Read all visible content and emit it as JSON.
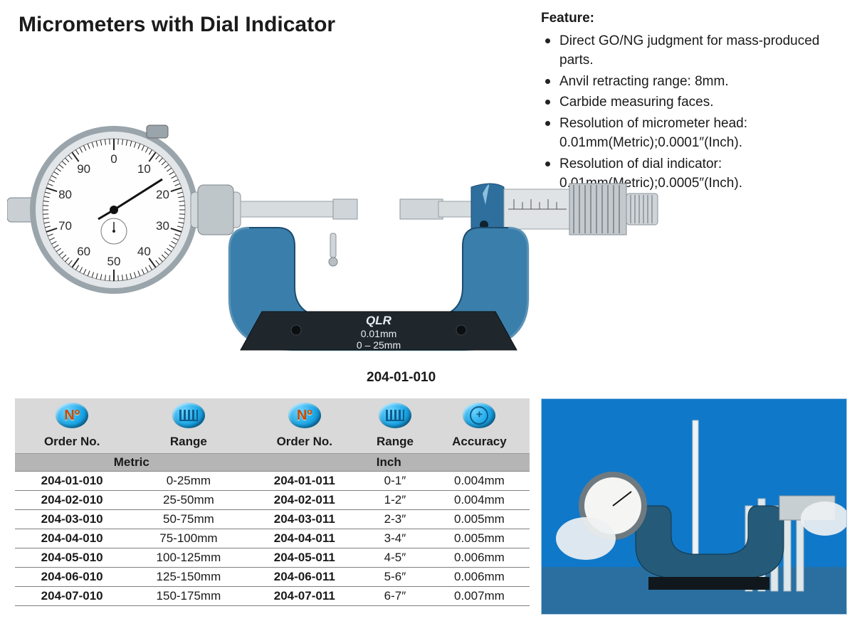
{
  "title": "Micrometers with Dial Indicator",
  "feature_heading": "Feature:",
  "features": [
    "Direct GO/NG judgment for mass-produced parts.",
    "Anvil retracting range: 8mm.",
    "Carbide measuring faces.",
    "Resolution of micrometer head: 0.01mm(Metric);0.0001″(Inch).",
    "Resolution of dial indicator: 0.01mm(Metric);0.0005″(Inch)."
  ],
  "model_caption": "204-01-010",
  "illustration": {
    "frame_color": "#2e6f9e",
    "frame_highlight": "#6aa9cf",
    "base_color": "#1e2529",
    "spindle_color": "#c9cfd3",
    "thimble_color": "#b9bfc3",
    "dial_face_color": "#fefefe",
    "dial_bezel_color": "#9aa4ab",
    "brand": "QLR",
    "resolution_text": "0.01mm",
    "range_text": "0 – 25mm",
    "dial_numbers": [
      "0",
      "10",
      "20",
      "30",
      "40",
      "50",
      "60",
      "70",
      "80",
      "90"
    ]
  },
  "table": {
    "columns": [
      "Order No.",
      "Range",
      "Order No.",
      "Range",
      "Accuracy"
    ],
    "unit_headers": [
      "Metric",
      "Inch"
    ],
    "icon_colors": {
      "badge_bg": "#1aa6e6",
      "orange": "#c94a00"
    },
    "rows": [
      {
        "m_on": "204-01-010",
        "m_rng": "0-25mm",
        "i_on": "204-01-011",
        "i_rng": "0-1″",
        "acc": "0.004mm"
      },
      {
        "m_on": "204-02-010",
        "m_rng": "25-50mm",
        "i_on": "204-02-011",
        "i_rng": "1-2″",
        "acc": "0.004mm"
      },
      {
        "m_on": "204-03-010",
        "m_rng": "50-75mm",
        "i_on": "204-03-011",
        "i_rng": "2-3″",
        "acc": "0.005mm"
      },
      {
        "m_on": "204-04-010",
        "m_rng": "75-100mm",
        "i_on": "204-04-011",
        "i_rng": "3-4″",
        "acc": "0.005mm"
      },
      {
        "m_on": "204-05-010",
        "m_rng": "100-125mm",
        "i_on": "204-05-011",
        "i_rng": "4-5″",
        "acc": "0.006mm"
      },
      {
        "m_on": "204-06-010",
        "m_rng": "125-150mm",
        "i_on": "204-06-011",
        "i_rng": "5-6″",
        "acc": "0.006mm"
      },
      {
        "m_on": "204-07-010",
        "m_rng": "150-175mm",
        "i_on": "204-07-011",
        "i_rng": "6-7″",
        "acc": "0.007mm"
      }
    ],
    "header_bg": "#d9d9d9",
    "unit_bg": "#b5b5b5",
    "row_border": "#7f7f7f",
    "font_size": 17
  },
  "app_photo": {
    "bg": "#1078c8",
    "rod_color": "#dfe7ea",
    "frame_color": "#255a78",
    "dial_face": "#f5f6f4"
  }
}
